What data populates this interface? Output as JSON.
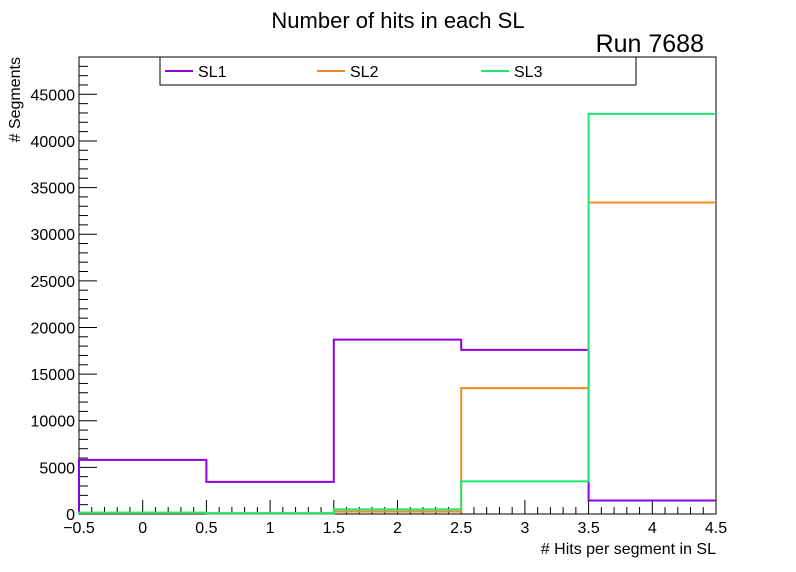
{
  "chart_data": {
    "type": "step-histogram",
    "title": "Number of hits in each SL",
    "annotation": "Run 7688",
    "xlabel": "# Hits per segment in SL",
    "ylabel": "# Segments",
    "xlim": [
      -0.5,
      4.5
    ],
    "ylim": [
      0,
      49000
    ],
    "x_ticks": [
      -0.5,
      0,
      0.5,
      1,
      1.5,
      2,
      2.5,
      3,
      3.5,
      4,
      4.5
    ],
    "x_tick_labels": [
      "−0.5",
      "0",
      "0.5",
      "1",
      "1.5",
      "2",
      "2.5",
      "3",
      "3.5",
      "4",
      "4.5"
    ],
    "y_ticks": [
      0,
      5000,
      10000,
      15000,
      20000,
      25000,
      30000,
      35000,
      40000,
      45000
    ],
    "y_tick_labels": [
      "0",
      "5000",
      "10000",
      "15000",
      "20000",
      "25000",
      "30000",
      "35000",
      "40000",
      "45000"
    ],
    "bin_edges": [
      -0.5,
      0.5,
      1.5,
      2.5,
      3.5,
      4.5
    ],
    "grid": false,
    "legend_position": "top",
    "series": [
      {
        "name": "SL1",
        "color": "#9000e0",
        "values": [
          5800,
          3450,
          18700,
          17600,
          1450
        ]
      },
      {
        "name": "SL2",
        "color": "#f08a24",
        "values": [
          120,
          100,
          250,
          13500,
          33400
        ]
      },
      {
        "name": "SL3",
        "color": "#1ee870",
        "values": [
          150,
          80,
          500,
          3500,
          42900
        ]
      }
    ]
  }
}
